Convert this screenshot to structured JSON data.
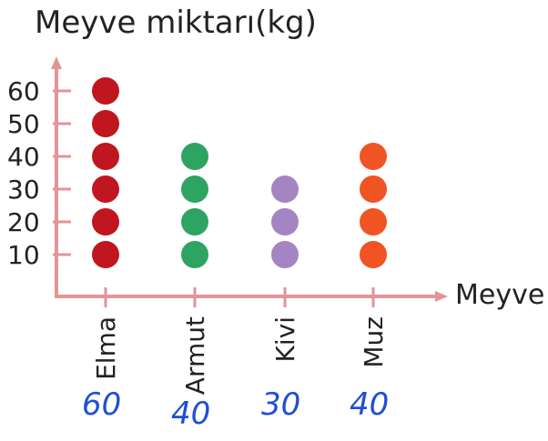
{
  "chart_data": {
    "type": "scatter",
    "title": "Meyve miktarı(kg)",
    "xlabel": "Meyve",
    "ylabel": "",
    "categories": [
      "Elma",
      "Armut",
      "Kivi",
      "Muz"
    ],
    "values": [
      60,
      40,
      30,
      40
    ],
    "yticks": [
      10,
      20,
      30,
      40,
      50,
      60
    ],
    "ylim": [
      0,
      70
    ],
    "dot_step": 10,
    "colors": [
      "#c0161f",
      "#2ea462",
      "#a584c4",
      "#ef5422"
    ],
    "axis_color": "#e29497",
    "grid": false,
    "legend": "none",
    "handwritten_answers": [
      "60",
      "40",
      "30",
      "40"
    ]
  },
  "footer_fragment": ""
}
